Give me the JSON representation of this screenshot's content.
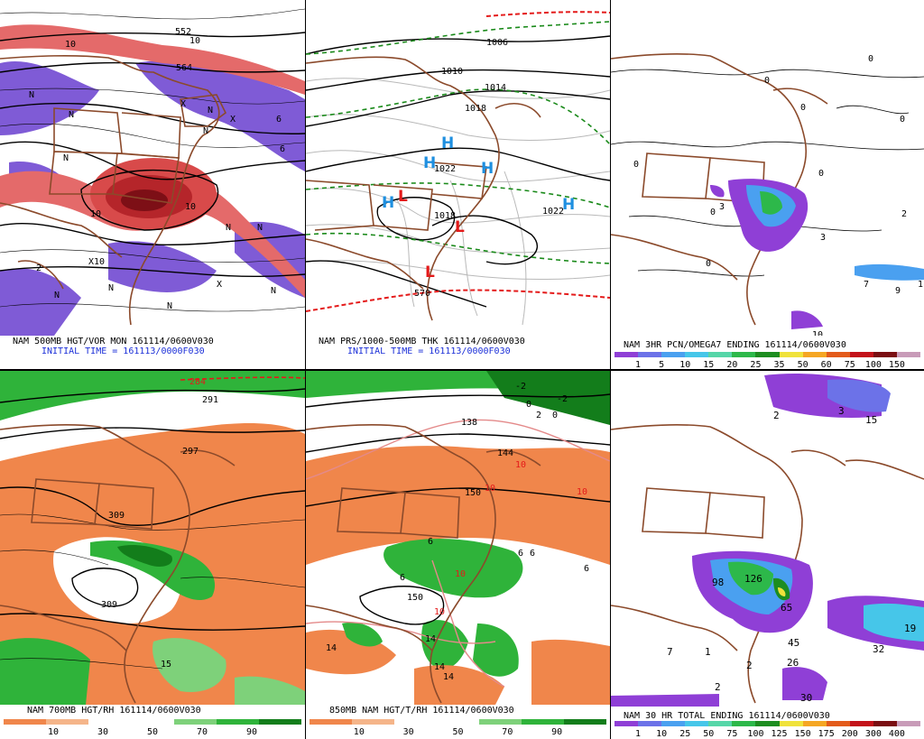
{
  "panels": [
    {
      "id": "p1",
      "title": "NAM 500MB HGT/VOR MON 161114/0600V030",
      "subtitle": "INITIAL TIME = 161113/0000F030",
      "labels": [
        "552",
        "564",
        "10",
        "10",
        "N",
        "N",
        "N",
        "X",
        "X",
        "N",
        "6",
        "6",
        "N",
        "10",
        "10",
        "N",
        "N",
        "X",
        "X10",
        "2",
        "N",
        "N",
        "N",
        "N"
      ]
    },
    {
      "id": "p2",
      "title": "NAM PRS/1000-500MB THK 161114/0600V030",
      "subtitle": "INITIAL TIME = 161113/0000F030",
      "labels": [
        "1006",
        "1010",
        "1014",
        "1018",
        "1022",
        "1018",
        "1022",
        "570"
      ],
      "highs": [
        "H",
        "H",
        "H",
        "H",
        "H"
      ],
      "lows": [
        "L",
        "L",
        "L"
      ]
    },
    {
      "id": "p3",
      "title": "NAM 3HR PCN/OMEGA7 ENDING 161114/0600V030",
      "labels": [
        "0",
        "0",
        "0",
        "0",
        "0",
        "0",
        "0",
        "0",
        "3",
        "3",
        "2",
        "7",
        "9",
        "1",
        "10"
      ],
      "scale": {
        "ticks": [
          "1",
          "5",
          "10",
          "15",
          "20",
          "25",
          "35",
          "50",
          "60",
          "75",
          "100",
          "150"
        ],
        "colors": [
          "#8f3fd6",
          "#6c72e8",
          "#4aa0f0",
          "#46c6e9",
          "#56d6a8",
          "#2db84a",
          "#1d8d20",
          "#f0e23b",
          "#f5a623",
          "#e35b1b",
          "#c3121a",
          "#7a0e12",
          "#c89bb8"
        ]
      }
    },
    {
      "id": "p4",
      "title": "NAM 700MB HGT/RH 161114/0600V030",
      "labels": [
        "284",
        "291",
        "297",
        "309",
        "309",
        "15"
      ],
      "scale": {
        "ticks": [
          "10",
          "30",
          "50",
          "70",
          "90"
        ],
        "colors": [
          "#f0864b",
          "#f5b58a",
          "#ffffff",
          "#ffffff",
          "#7ed17a",
          "#2fb33a",
          "#137d1b"
        ]
      }
    },
    {
      "id": "p5",
      "title": "850MB NAM HGT/T/RH 161114/0600V030",
      "labels": [
        "-2",
        "-2",
        "0",
        "2",
        "0",
        "138",
        "144",
        "150",
        "150",
        "10",
        "10",
        "10",
        "6",
        "6",
        "6",
        "6",
        "6",
        "10",
        "10",
        "14",
        "14",
        "14",
        "14"
      ],
      "scale": {
        "ticks": [
          "10",
          "30",
          "50",
          "70",
          "90"
        ],
        "colors": [
          "#f0864b",
          "#f5b58a",
          "#ffffff",
          "#ffffff",
          "#7ed17a",
          "#2fb33a",
          "#137d1b"
        ]
      }
    },
    {
      "id": "p6",
      "title": "NAM 30 HR TOTAL ENDING 161114/0600V030",
      "labels": [
        "2",
        "3",
        "15",
        "98",
        "126",
        "65",
        "7",
        "1",
        "45",
        "32",
        "19",
        "2",
        "2",
        "30",
        "26"
      ],
      "scale": {
        "ticks": [
          "1",
          "10",
          "25",
          "50",
          "75",
          "100",
          "125",
          "150",
          "175",
          "200",
          "300",
          "400"
        ],
        "colors": [
          "#8f3fd6",
          "#6c72e8",
          "#4aa0f0",
          "#46c6e9",
          "#56d6a8",
          "#2db84a",
          "#1d8d20",
          "#f0e23b",
          "#f5a623",
          "#e35b1b",
          "#c3121a",
          "#7a0e12",
          "#c89bb8"
        ]
      }
    }
  ]
}
